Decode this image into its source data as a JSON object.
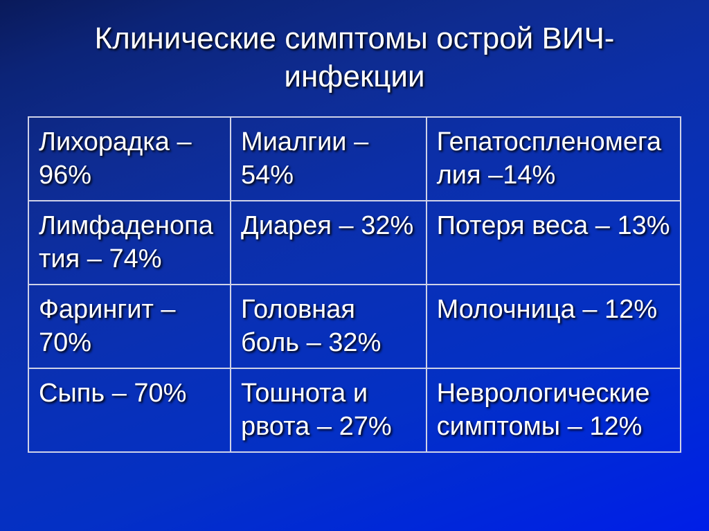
{
  "title": "Клинические симптомы острой ВИЧ-инфекции",
  "table": {
    "columns": 3,
    "border_color": "#cfd2e8",
    "text_color": "#ffffff",
    "shadow_color": "#000000",
    "title_fontsize": 44,
    "cell_fontsize": 38,
    "background_gradient": [
      "#0a1a5a",
      "#0c2fa8",
      "#001ee8"
    ],
    "rows": [
      [
        "Лихорадка – 96%",
        "Миалгии – 54%",
        "Гепатоспленомегалия –14%"
      ],
      [
        "Лимфаденопатия – 74%",
        "Диарея – 32%",
        "Потеря веса – 13%"
      ],
      [
        "Фарингит – 70%",
        "Головная боль – 32%",
        "Молочница – 12%"
      ],
      [
        "Сыпь – 70%",
        "Тошнота и рвота – 27%",
        "Неврологические симптомы – 12%"
      ]
    ]
  }
}
